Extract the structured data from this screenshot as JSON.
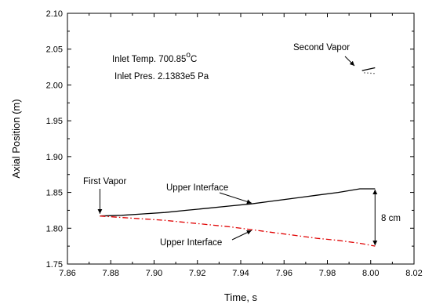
{
  "chart_data": {
    "type": "line",
    "title": "",
    "xlabel": "Time, s",
    "ylabel": "Axial Position (m)",
    "xlim": [
      7.86,
      8.02
    ],
    "ylim": [
      1.75,
      2.1
    ],
    "x_ticks": [
      "7.86",
      "7.88",
      "7.90",
      "7.92",
      "7.94",
      "7.96",
      "7.98",
      "8.00",
      "8.02"
    ],
    "y_ticks": [
      "1.75",
      "1.80",
      "1.85",
      "1.90",
      "1.95",
      "2.00",
      "2.05",
      "2.10"
    ],
    "x_tick_values": [
      7.86,
      7.88,
      7.9,
      7.92,
      7.94,
      7.96,
      7.98,
      8.0,
      8.02
    ],
    "y_tick_values": [
      1.75,
      1.8,
      1.85,
      1.9,
      1.95,
      2.0,
      2.05,
      2.1
    ],
    "grid": false,
    "series": [
      {
        "color": "#000000",
        "style": "solid",
        "x": [
          7.875,
          7.885,
          7.895,
          7.905,
          7.915,
          7.925,
          7.935,
          7.945,
          7.955,
          7.965,
          7.975,
          7.985,
          7.995,
          8.002
        ],
        "y": [
          1.817,
          1.818,
          1.82,
          1.822,
          1.825,
          1.828,
          1.831,
          1.834,
          1.838,
          1.842,
          1.846,
          1.85,
          1.855,
          1.855
        ]
      },
      {
        "color": "#e00000",
        "style": "dashdot",
        "x": [
          7.875,
          7.885,
          7.895,
          7.905,
          7.915,
          7.925,
          7.935,
          7.945,
          7.955,
          7.965,
          7.975,
          7.985,
          7.995,
          8.002
        ],
        "y": [
          1.817,
          1.815,
          1.813,
          1.811,
          1.808,
          1.805,
          1.802,
          1.798,
          1.794,
          1.79,
          1.786,
          1.783,
          1.779,
          1.775
        ]
      },
      {
        "color": "#000000",
        "style": "solid",
        "x": [
          7.996,
          8.002
        ],
        "y": [
          2.02,
          2.024
        ]
      },
      {
        "color": "#000000",
        "style": "dotted",
        "x": [
          7.997,
          8.002
        ],
        "y": [
          2.017,
          2.016
        ]
      }
    ],
    "annotations": {
      "inlet_temp": "Inlet Temp. 700.85",
      "inlet_temp_unit_sup": "o",
      "inlet_temp_unit": "C",
      "inlet_pres": "Inlet Pres.  2.1383e5 Pa",
      "second_vapor": "Second Vapor",
      "first_vapor": "First Vapor",
      "upper_interface_1": "Upper Interface",
      "upper_interface_2": "Upper Interface",
      "gap": "8 cm"
    }
  }
}
